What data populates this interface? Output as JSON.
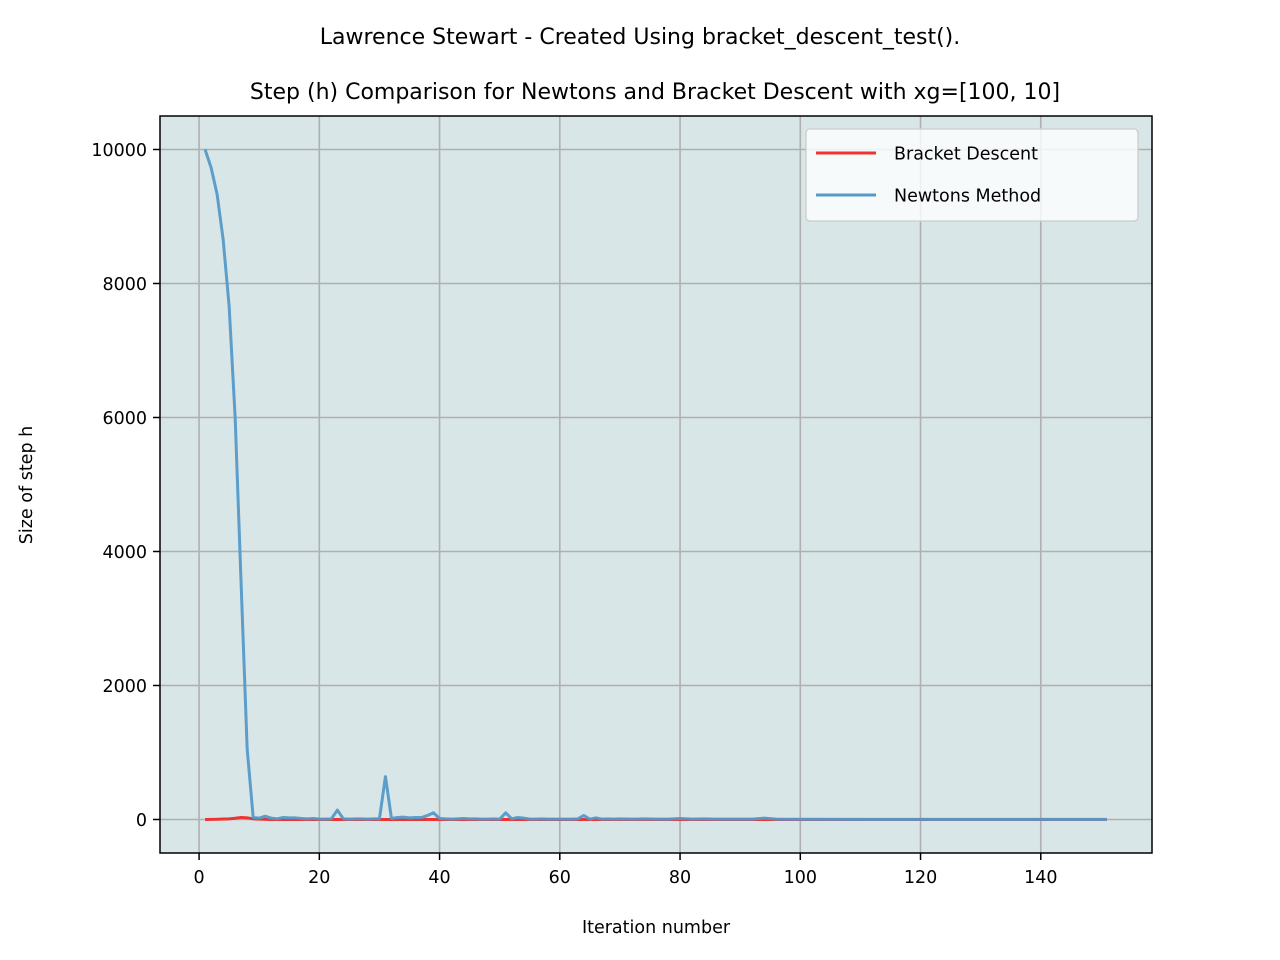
{
  "chart_data": {
    "type": "line",
    "suptitle": "Lawrence Stewart - Created Using bracket_descent_test().",
    "title": "Step (h) Comparison for Newtons and Bracket Descent with xg=[100, 10]",
    "xlabel": "Iteration number",
    "ylabel": "Size of step h",
    "xlim": [
      -6.5,
      158.5
    ],
    "ylim": [
      -500,
      10500
    ],
    "xticks": [
      0,
      20,
      40,
      60,
      80,
      100,
      120,
      140
    ],
    "yticks": [
      0,
      2000,
      4000,
      6000,
      8000,
      10000
    ],
    "grid": true,
    "legend_position": "top-right",
    "background_color": "#d8e6e7",
    "series": [
      {
        "name": "Bracket Descent",
        "color": "#ee3333",
        "points": [
          [
            1,
            0
          ],
          [
            3,
            3
          ],
          [
            5,
            10
          ],
          [
            6,
            18
          ],
          [
            7,
            30
          ],
          [
            8,
            25
          ],
          [
            9,
            10
          ],
          [
            10,
            5
          ],
          [
            12,
            0
          ],
          [
            20,
            0
          ],
          [
            60,
            0
          ],
          [
            100,
            0
          ],
          [
            151,
            0
          ]
        ]
      },
      {
        "name": "Newtons Method",
        "color": "#5599c8",
        "points": [
          [
            1,
            10000
          ],
          [
            2,
            9730
          ],
          [
            3,
            9330
          ],
          [
            4,
            8660
          ],
          [
            5,
            7660
          ],
          [
            6,
            6000
          ],
          [
            7,
            3500
          ],
          [
            8,
            1050
          ],
          [
            9,
            30
          ],
          [
            10,
            20
          ],
          [
            11,
            50
          ],
          [
            12,
            20
          ],
          [
            13,
            10
          ],
          [
            14,
            30
          ],
          [
            15,
            25
          ],
          [
            16,
            25
          ],
          [
            17,
            15
          ],
          [
            18,
            10
          ],
          [
            19,
            15
          ],
          [
            20,
            5
          ],
          [
            21,
            5
          ],
          [
            22,
            10
          ],
          [
            23,
            140
          ],
          [
            24,
            10
          ],
          [
            25,
            5
          ],
          [
            26,
            10
          ],
          [
            27,
            10
          ],
          [
            28,
            5
          ],
          [
            29,
            10
          ],
          [
            30,
            10
          ],
          [
            31,
            640
          ],
          [
            32,
            15
          ],
          [
            33,
            30
          ],
          [
            34,
            35
          ],
          [
            35,
            25
          ],
          [
            36,
            30
          ],
          [
            37,
            30
          ],
          [
            38,
            60
          ],
          [
            39,
            100
          ],
          [
            40,
            15
          ],
          [
            41,
            10
          ],
          [
            42,
            5
          ],
          [
            43,
            10
          ],
          [
            44,
            15
          ],
          [
            45,
            10
          ],
          [
            46,
            10
          ],
          [
            47,
            5
          ],
          [
            48,
            5
          ],
          [
            49,
            10
          ],
          [
            50,
            5
          ],
          [
            51,
            100
          ],
          [
            52,
            10
          ],
          [
            53,
            30
          ],
          [
            54,
            20
          ],
          [
            55,
            5
          ],
          [
            56,
            5
          ],
          [
            57,
            10
          ],
          [
            58,
            5
          ],
          [
            60,
            5
          ],
          [
            62,
            5
          ],
          [
            63,
            10
          ],
          [
            64,
            60
          ],
          [
            65,
            5
          ],
          [
            66,
            25
          ],
          [
            67,
            5
          ],
          [
            68,
            10
          ],
          [
            69,
            5
          ],
          [
            70,
            10
          ],
          [
            72,
            5
          ],
          [
            74,
            10
          ],
          [
            76,
            5
          ],
          [
            78,
            5
          ],
          [
            80,
            15
          ],
          [
            82,
            5
          ],
          [
            84,
            10
          ],
          [
            86,
            5
          ],
          [
            88,
            5
          ],
          [
            90,
            5
          ],
          [
            92,
            5
          ],
          [
            94,
            20
          ],
          [
            96,
            5
          ],
          [
            100,
            3
          ],
          [
            110,
            2
          ],
          [
            120,
            2
          ],
          [
            130,
            1
          ],
          [
            140,
            1
          ],
          [
            151,
            1
          ]
        ]
      }
    ]
  }
}
